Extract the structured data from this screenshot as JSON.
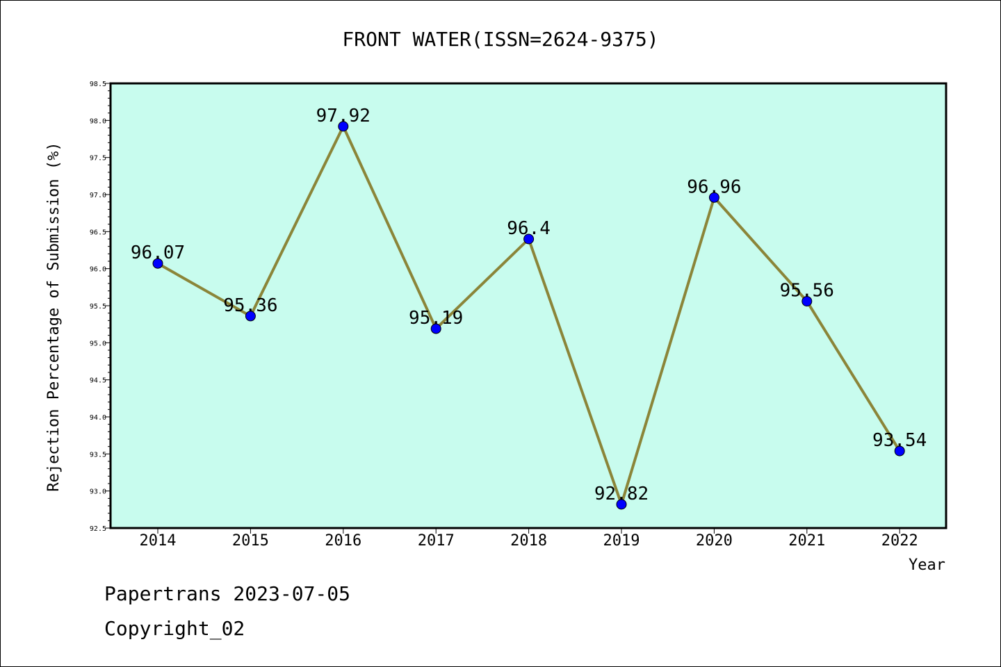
{
  "chart_data": {
    "type": "line",
    "title": "FRONT WATER(ISSN=2624-9375)",
    "xlabel": "Year",
    "ylabel": "Rejection Percentage of Submission (%)",
    "x": [
      "2014",
      "2015",
      "2016",
      "2017",
      "2018",
      "2019",
      "2020",
      "2021",
      "2022"
    ],
    "series": [
      {
        "values": [
          96.07,
          95.36,
          97.92,
          95.19,
          96.4,
          92.82,
          96.96,
          95.56,
          93.54
        ],
        "labels": [
          "96.07",
          "95.36",
          "97.92",
          "95.19",
          "96.4",
          "92.82",
          "96.96",
          "95.56",
          "93.54"
        ]
      }
    ],
    "ylim": [
      92.5,
      98.5
    ],
    "yticks": [
      "92.5",
      "93.0",
      "93.5",
      "94.0",
      "94.5",
      "95.0",
      "95.5",
      "96.0",
      "96.5",
      "97.0",
      "97.5",
      "98.0",
      "98.5"
    ],
    "grid": false,
    "colors": {
      "plot_bg": "#c8fcee",
      "line": "#8b8539",
      "marker": "#0000ff"
    }
  },
  "footer": {
    "line1": "Papertrans 2023-07-05",
    "line2": "Copyright_02"
  }
}
